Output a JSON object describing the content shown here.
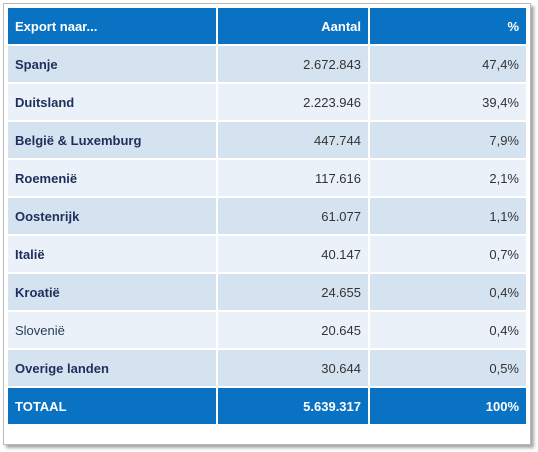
{
  "table": {
    "headers": {
      "country": "Export naar...",
      "count": "Aantal",
      "percent": "%"
    },
    "rows": [
      {
        "country": "Spanje",
        "count": "2.672.843",
        "percent": "47,4%"
      },
      {
        "country": "Duitsland",
        "count": "2.223.946",
        "percent": "39,4%"
      },
      {
        "country": "België & Luxemburg",
        "count": "447.744",
        "percent": "7,9%"
      },
      {
        "country": "Roemenië",
        "count": "117.616",
        "percent": "2,1%"
      },
      {
        "country": "Oostenrijk",
        "count": "61.077",
        "percent": "1,1%"
      },
      {
        "country": "Italië",
        "count": "40.147",
        "percent": "0,7%"
      },
      {
        "country": "Kroatië",
        "count": "24.655",
        "percent": "0,4%"
      },
      {
        "country": "Slovenië",
        "count": "20.645",
        "percent": "0,4%"
      },
      {
        "country": "Overige landen",
        "count": "30.644",
        "percent": "0,5%"
      }
    ],
    "total": {
      "label": "TOTAAL",
      "count": "5.639.317",
      "percent": "100%"
    }
  },
  "colors": {
    "header_bg": "#0a72c2",
    "row_odd_bg": "#d5e3f1",
    "row_even_bg": "#eaf1f8",
    "country_text": "#1f2e5a"
  }
}
